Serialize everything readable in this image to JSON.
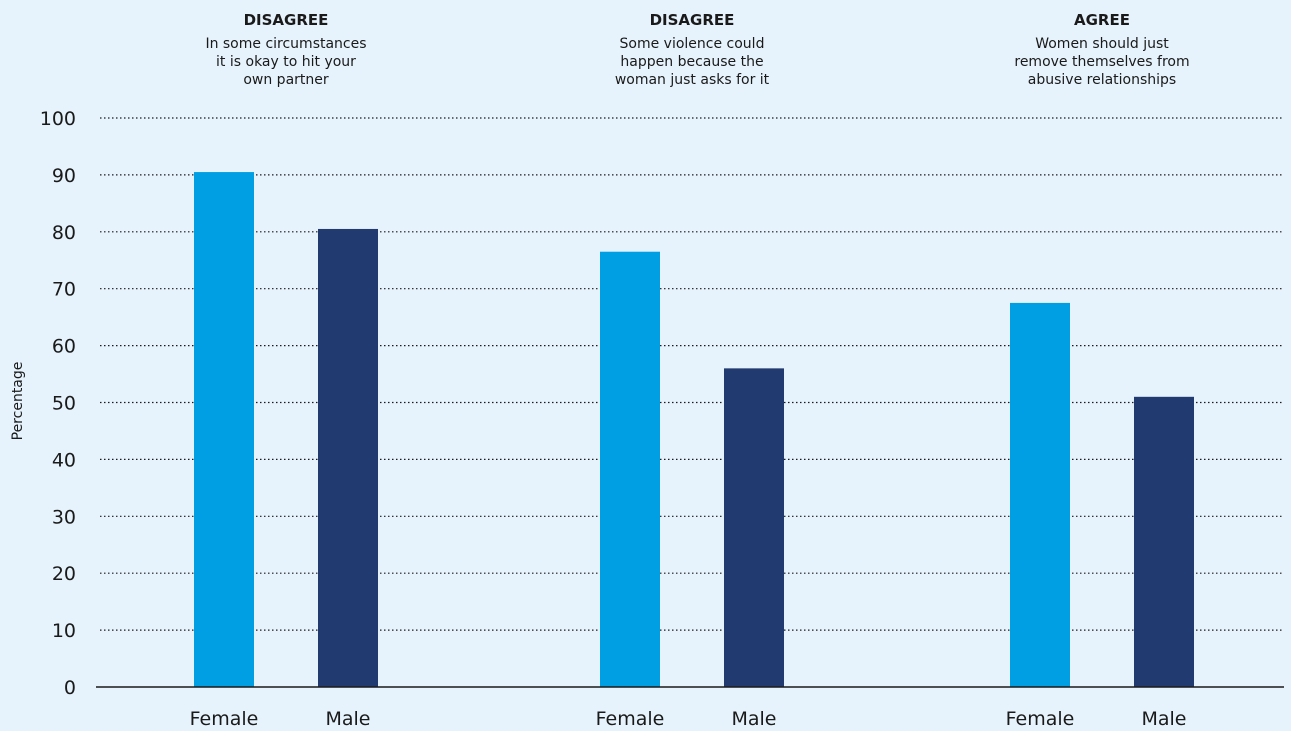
{
  "chart_data": {
    "type": "bar",
    "ylabel": "Percentage",
    "ylim": [
      0,
      100
    ],
    "yticks": [
      0,
      10,
      20,
      30,
      40,
      50,
      60,
      70,
      80,
      90,
      100
    ],
    "grid": true,
    "groups": [
      {
        "heading": "DISAGREE",
        "statement": [
          "In some circumstances",
          "it is okay to hit your",
          "own partner"
        ],
        "categories": [
          "Female",
          "Male"
        ],
        "values": [
          90.5,
          80.5
        ]
      },
      {
        "heading": "DISAGREE",
        "statement": [
          "Some violence could",
          "happen because the",
          "woman just asks for it"
        ],
        "categories": [
          "Female",
          "Male"
        ],
        "values": [
          76.5,
          56
        ]
      },
      {
        "heading": "AGREE",
        "statement": [
          "Women should just",
          "remove themselves from",
          "abusive relationships"
        ],
        "categories": [
          "Female",
          "Male"
        ],
        "values": [
          67.5,
          51
        ]
      }
    ],
    "colors": {
      "Female": "#009fe3",
      "Male": "#213a6f"
    }
  }
}
